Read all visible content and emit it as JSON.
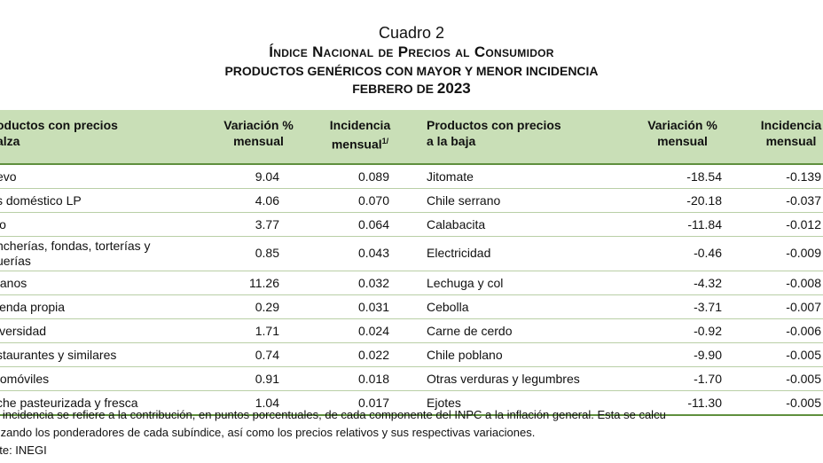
{
  "header": {
    "cuadro": "Cuadro 2",
    "title": "Índice Nacional de Precios al Consumidor",
    "subtitle": "PRODUCTOS GENÉRICOS CON MAYOR Y MENOR INCIDENCIA",
    "period_prefix": "FEBRERO DE",
    "period_year": "2023"
  },
  "table": {
    "columns": {
      "up_product": "oductos con precios\nalza",
      "up_variation": "Variación %\nmensual",
      "up_incidence": "Incidencia\nmensual",
      "note_mark": "1/",
      "down_product": "Productos con precios\na la baja",
      "down_variation": "Variación %\nmensual",
      "down_incidence": "Incidencia\nmensual"
    },
    "rows": [
      {
        "up_product": "evo",
        "up_variation": "9.04",
        "up_incidence": "0.089",
        "down_product": "Jitomate",
        "down_variation": "-18.54",
        "down_incidence": "-0.139"
      },
      {
        "up_product": "s doméstico LP",
        "up_variation": "4.06",
        "up_incidence": "0.070",
        "down_product": "Chile serrano",
        "down_variation": "-20.18",
        "down_incidence": "-0.037"
      },
      {
        "up_product": "lo",
        "up_variation": "3.77",
        "up_incidence": "0.064",
        "down_product": "Calabacita",
        "down_variation": "-11.84",
        "down_incidence": "-0.012"
      },
      {
        "up_product": "ncherías, fondas, torterías y\nuerías",
        "up_variation": "0.85",
        "up_incidence": "0.043",
        "down_product": "Electricidad",
        "down_variation": "-0.46",
        "down_incidence": "-0.009"
      },
      {
        "up_product": "tanos",
        "up_variation": "11.26",
        "up_incidence": "0.032",
        "down_product": "Lechuga y col",
        "down_variation": "-4.32",
        "down_incidence": "-0.008"
      },
      {
        "up_product": "ienda propia",
        "up_variation": "0.29",
        "up_incidence": "0.031",
        "down_product": "Cebolla",
        "down_variation": "-3.71",
        "down_incidence": "-0.007"
      },
      {
        "up_product": "iversidad",
        "up_variation": "1.71",
        "up_incidence": "0.024",
        "down_product": "Carne de cerdo",
        "down_variation": "-0.92",
        "down_incidence": "-0.006"
      },
      {
        "up_product": "staurantes y similares",
        "up_variation": "0.74",
        "up_incidence": "0.022",
        "down_product": "Chile poblano",
        "down_variation": "-9.90",
        "down_incidence": "-0.005"
      },
      {
        "up_product": "tomóviles",
        "up_variation": "0.91",
        "up_incidence": "0.018",
        "down_product": "Otras verduras y legumbres",
        "down_variation": "-1.70",
        "down_incidence": "-0.005"
      },
      {
        "up_product": "che pasteurizada y fresca",
        "up_variation": "1.04",
        "up_incidence": "0.017",
        "down_product": "Ejotes",
        "down_variation": "-11.30",
        "down_incidence": "-0.005"
      }
    ]
  },
  "notes": {
    "line1": "a incidencia se refiere a la contribución, en puntos porcentuales, de cada componente del INPC a la inflación general. Esta se calcu",
    "line2": "ilizando los ponderadores de cada subíndice, así como los precios relativos y sus respectivas variaciones.",
    "source": "nte: INEGI"
  },
  "colors": {
    "header_bg": "#c9dfb7",
    "rule_dark": "#5f8f3e",
    "rule_light": "#b9cfa6"
  }
}
